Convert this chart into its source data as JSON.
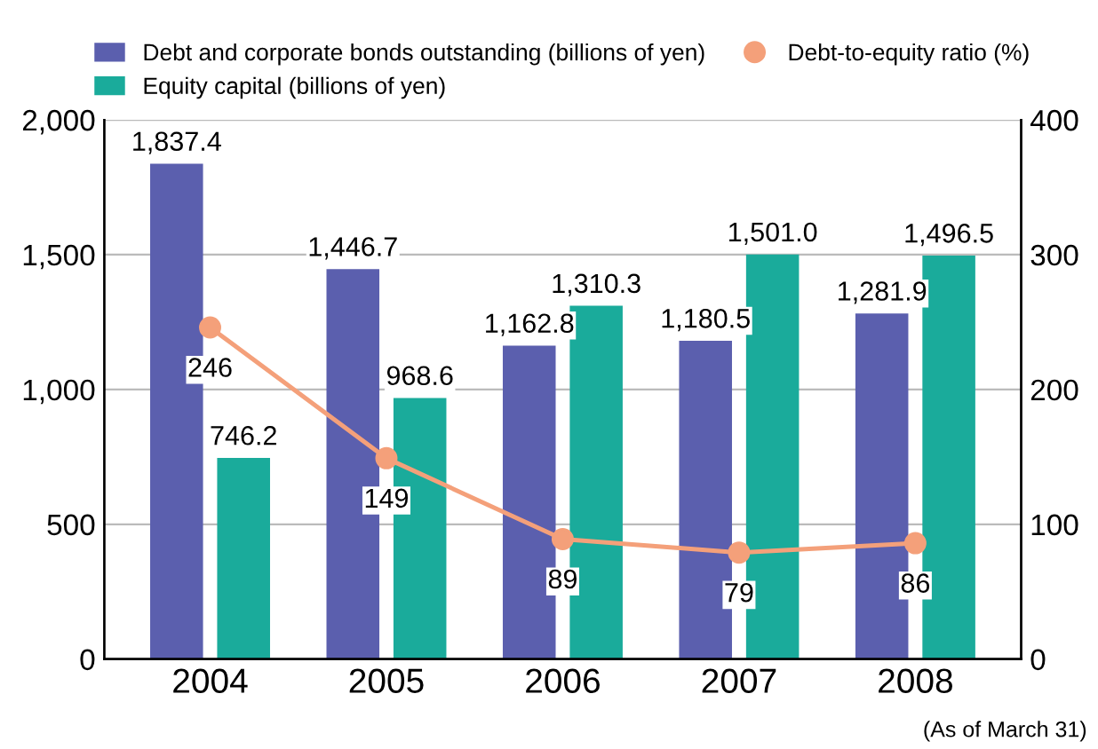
{
  "chart_data": {
    "type": "bar",
    "categories": [
      "2004",
      "2005",
      "2006",
      "2007",
      "2008"
    ],
    "series": [
      {
        "name": "Debt and corporate bonds outstanding (billions of yen)",
        "color": "#5b5fae",
        "values": [
          1837.4,
          1446.7,
          1162.8,
          1180.5,
          1281.9
        ],
        "value_labels": [
          "1,837.4",
          "1,446.7",
          "1,162.8",
          "1,180.5",
          "1,281.9"
        ]
      },
      {
        "name": "Equity capital (billions of yen)",
        "color": "#1aab9b",
        "values": [
          746.2,
          968.6,
          1310.3,
          1501.0,
          1496.5
        ],
        "value_labels": [
          "746.2",
          "968.6",
          "1,310.3",
          "1,501.0",
          "1,496.5"
        ]
      },
      {
        "name": "Debt-to-equity ratio (%)",
        "type": "line",
        "axis": "y2",
        "color": "#f4a07a",
        "marker": "circle",
        "values": [
          246,
          149,
          89,
          79,
          86
        ],
        "value_labels": [
          "246",
          "149",
          "89",
          "79",
          "86"
        ]
      }
    ],
    "ylim": [
      0,
      2000
    ],
    "yticks": [
      {
        "value": 0,
        "label": "0"
      },
      {
        "value": 500,
        "label": "500"
      },
      {
        "value": 1000,
        "label": "1,000"
      },
      {
        "value": 1500,
        "label": "1,500"
      },
      {
        "value": 2000,
        "label": "2,000"
      }
    ],
    "y2lim": [
      0,
      400
    ],
    "y2ticks": [
      0,
      100,
      200,
      300,
      400
    ],
    "grid": "y",
    "legend": "top",
    "annotations": [
      "(As of March 31)"
    ]
  }
}
